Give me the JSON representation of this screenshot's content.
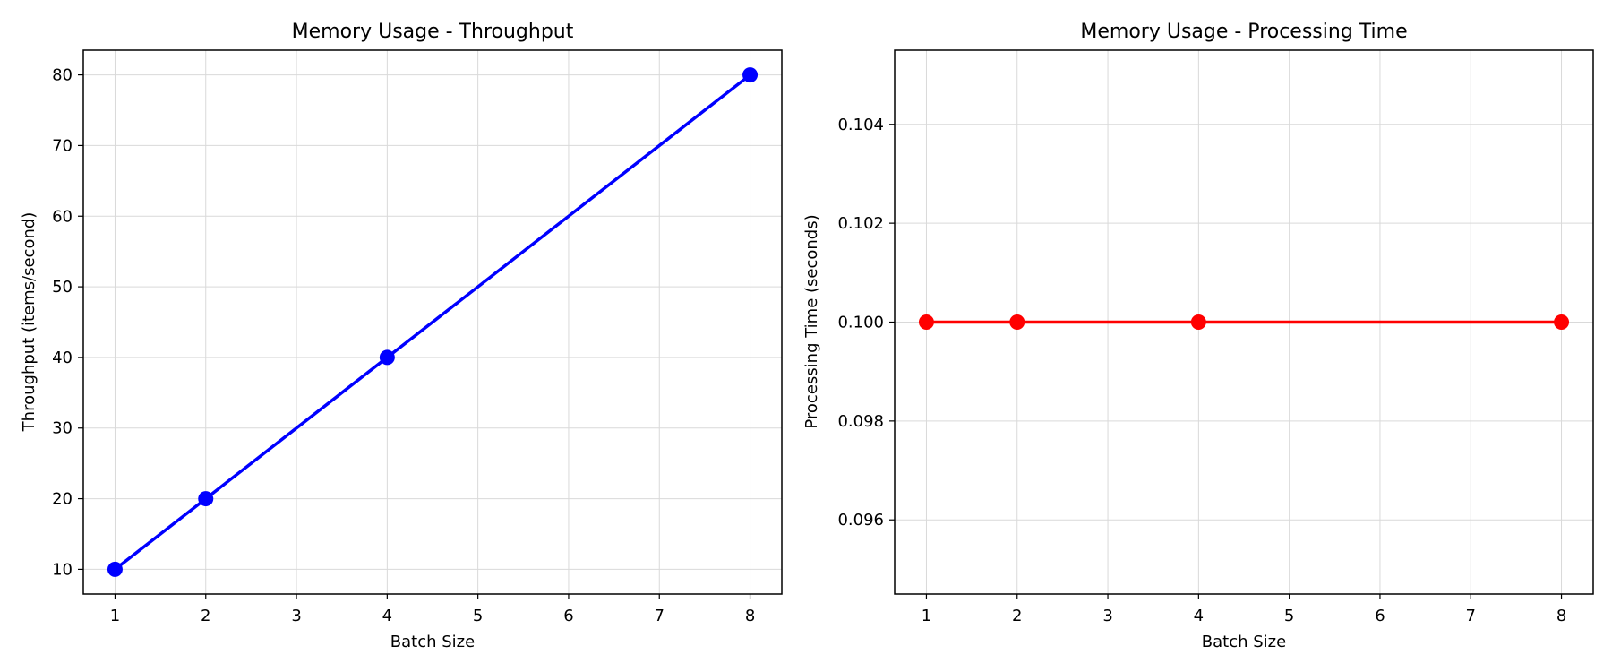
{
  "chart_data": [
    {
      "type": "line",
      "title": "Memory Usage - Throughput",
      "xlabel": "Batch Size",
      "ylabel": "Throughput (items/second)",
      "x": [
        1,
        2,
        4,
        8
      ],
      "series": [
        {
          "values": [
            10,
            20,
            40,
            80
          ],
          "color": "#0000ff"
        }
      ],
      "xticks": [
        1,
        2,
        3,
        4,
        5,
        6,
        7,
        8
      ],
      "yticks": [
        10,
        20,
        30,
        40,
        50,
        60,
        70,
        80
      ],
      "xlim": [
        0.65,
        8.35
      ],
      "ylim": [
        6.5,
        83.5
      ],
      "grid": true,
      "legend": "none"
    },
    {
      "type": "line",
      "title": "Memory Usage - Processing Time",
      "xlabel": "Batch Size",
      "ylabel": "Processing Time (seconds)",
      "x": [
        1,
        2,
        4,
        8
      ],
      "series": [
        {
          "values": [
            0.1,
            0.1,
            0.1,
            0.1
          ],
          "color": "#ff0000"
        }
      ],
      "xticks": [
        1,
        2,
        3,
        4,
        5,
        6,
        7,
        8
      ],
      "yticks": [
        0.096,
        0.098,
        0.1,
        0.102,
        0.104
      ],
      "ytick_labels": [
        "0.096",
        "0.098",
        "0.100",
        "0.102",
        "0.104"
      ],
      "xlim": [
        0.65,
        8.35
      ],
      "ylim": [
        0.0945,
        0.1055
      ],
      "grid": true,
      "legend": "none"
    }
  ]
}
